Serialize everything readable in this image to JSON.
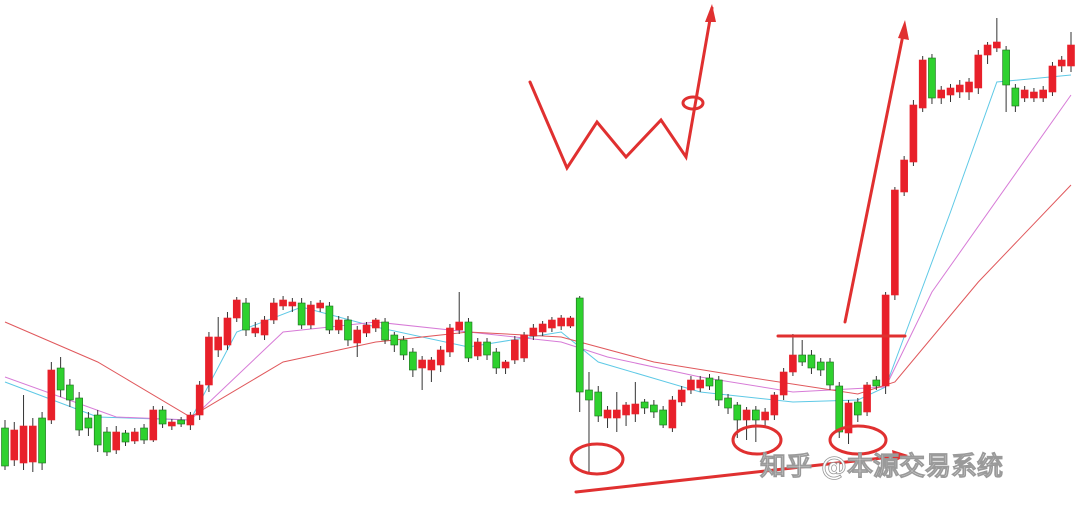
{
  "chart_data": {
    "type": "candlestick",
    "x": [
      0,
      1,
      2,
      3,
      4,
      5,
      6,
      7,
      8,
      9,
      10,
      11,
      12,
      13,
      14,
      15,
      16,
      17,
      18,
      19,
      20,
      21,
      22,
      23,
      24,
      25,
      26,
      27,
      28,
      29,
      30,
      31,
      32,
      33,
      34,
      35,
      36,
      37,
      38,
      39,
      40,
      41,
      42,
      43,
      44,
      45,
      46,
      47,
      48,
      49,
      50,
      51,
      52,
      53,
      54,
      55,
      56,
      57,
      58,
      59,
      60,
      61,
      62,
      63,
      64,
      65,
      66,
      67,
      68,
      69,
      70,
      71,
      72,
      73,
      74,
      75,
      76,
      77,
      78,
      79,
      80,
      81,
      82,
      83,
      84,
      85,
      86,
      87,
      88,
      89,
      90,
      91,
      92,
      93,
      94,
      95,
      96,
      97,
      98,
      99,
      100,
      101,
      102,
      103,
      104,
      105,
      106,
      107,
      108,
      109,
      110,
      111,
      112,
      113,
      114,
      115
    ],
    "xlim": [
      -0.5,
      115.5
    ],
    "ylim": [
      0,
      512
    ],
    "up_color": "#e8202a",
    "down_color": "#2ed12e",
    "open": [
      84,
      52,
      49,
      50,
      94,
      92,
      144,
      127,
      114,
      94,
      97,
      80,
      62,
      79,
      71,
      84,
      72,
      102,
      86,
      92,
      87,
      97,
      127,
      162,
      167,
      194,
      209,
      179,
      177,
      192,
      206,
      206,
      209,
      187,
      204,
      206,
      182,
      192,
      169,
      179,
      184,
      190,
      177,
      172,
      160,
      144,
      142,
      147,
      160,
      182,
      190,
      156,
      170,
      160,
      144,
      152,
      154,
      176,
      180,
      184,
      186,
      186,
      214,
      122,
      120,
      94,
      94,
      97,
      98,
      110,
      107,
      102,
      84,
      110,
      122,
      124,
      134,
      132,
      114,
      107,
      92,
      102,
      92,
      97,
      117,
      140,
      157,
      157,
      150,
      150,
      126,
      79,
      110,
      100,
      132,
      126,
      217,
      320,
      350,
      404,
      454,
      414,
      417,
      420,
      420,
      424,
      457,
      464,
      462,
      424,
      414,
      414,
      414,
      420,
      446,
      446
    ],
    "high": [
      92,
      90,
      117,
      94,
      100,
      150,
      155,
      133,
      120,
      100,
      102,
      85,
      86,
      82,
      84,
      88,
      106,
      106,
      93,
      95,
      100,
      131,
      180,
      195,
      200,
      215,
      214,
      190,
      196,
      214,
      216,
      214,
      214,
      211,
      212,
      210,
      196,
      196,
      186,
      190,
      194,
      194,
      180,
      176,
      164,
      156,
      155,
      166,
      188,
      220,
      194,
      174,
      174,
      164,
      152,
      176,
      180,
      188,
      191,
      195,
      197,
      196,
      216,
      140,
      126,
      106,
      120,
      110,
      130,
      113,
      112,
      106,
      116,
      126,
      136,
      136,
      138,
      136,
      118,
      110,
      105,
      106,
      104,
      120,
      144,
      178,
      172,
      162,
      154,
      154,
      130,
      112,
      114,
      130,
      136,
      220,
      325,
      356,
      412,
      456,
      458,
      426,
      428,
      432,
      434,
      462,
      470,
      494,
      466,
      428,
      426,
      424,
      426,
      450,
      456,
      480
    ],
    "low": [
      42,
      46,
      42,
      40,
      42,
      88,
      115,
      105,
      76,
      76,
      60,
      56,
      58,
      66,
      68,
      68,
      70,
      84,
      82,
      85,
      82,
      92,
      120,
      155,
      162,
      190,
      176,
      175,
      172,
      188,
      202,
      200,
      183,
      183,
      200,
      178,
      178,
      166,
      155,
      175,
      180,
      168,
      160,
      152,
      135,
      122,
      130,
      140,
      155,
      178,
      150,
      152,
      152,
      138,
      138,
      148,
      150,
      172,
      176,
      180,
      182,
      184,
      100,
      40,
      90,
      84,
      80,
      86,
      90,
      98,
      94,
      84,
      80,
      106,
      118,
      120,
      122,
      106,
      98,
      74,
      72,
      70,
      86,
      92,
      112,
      136,
      146,
      138,
      136,
      122,
      74,
      68,
      90,
      96,
      122,
      118,
      212,
      316,
      346,
      400,
      408,
      408,
      410,
      414,
      412,
      418,
      448,
      460,
      400,
      400,
      410,
      410,
      410,
      416,
      440,
      440
    ],
    "close": [
      46,
      82,
      86,
      86,
      49,
      142,
      122,
      112,
      82,
      84,
      67,
      60,
      80,
      70,
      80,
      72,
      102,
      88,
      90,
      88,
      97,
      127,
      175,
      175,
      194,
      212,
      182,
      184,
      192,
      209,
      212,
      210,
      187,
      207,
      209,
      182,
      192,
      172,
      182,
      187,
      192,
      172,
      167,
      157,
      142,
      152,
      152,
      162,
      184,
      190,
      154,
      170,
      157,
      144,
      150,
      172,
      177,
      184,
      188,
      192,
      194,
      194,
      120,
      112,
      96,
      102,
      102,
      107,
      108,
      104,
      100,
      87,
      112,
      122,
      132,
      132,
      126,
      112,
      104,
      92,
      102,
      92,
      100,
      117,
      140,
      157,
      150,
      144,
      142,
      127,
      80,
      109,
      97,
      127,
      126,
      217,
      322,
      352,
      407,
      452,
      414,
      422,
      424,
      427,
      430,
      457,
      467,
      470,
      427,
      406,
      422,
      420,
      422,
      446,
      452,
      467
    ],
    "series": [
      {
        "color": "#5ec9e6",
        "x": [
          0,
          10,
          20,
          25,
          32,
          40,
          50,
          60,
          64,
          75,
          85,
          92,
          95,
          98,
          102,
          107,
          115
        ],
        "values": [
          130,
          95,
          92,
          180,
          205,
          185,
          165,
          180,
          150,
          120,
          110,
          112,
          125,
          200,
          300,
          430,
          437
        ]
      },
      {
        "color": "#d77bd7",
        "x": [
          0,
          12,
          20,
          30,
          40,
          50,
          60,
          65,
          75,
          85,
          95,
          100,
          115
        ],
        "values": [
          135,
          95,
          92,
          180,
          190,
          180,
          170,
          155,
          135,
          120,
          125,
          220,
          417
        ]
      },
      {
        "color": "#e0585c",
        "x": [
          0,
          10,
          20,
          30,
          40,
          50,
          60,
          70,
          80,
          92,
          96,
          105,
          115
        ],
        "values": [
          190,
          150,
          95,
          150,
          170,
          180,
          175,
          150,
          135,
          118,
          130,
          230,
          327
        ]
      }
    ]
  },
  "watermark": {
    "text": "知乎 @本源交易系统"
  }
}
